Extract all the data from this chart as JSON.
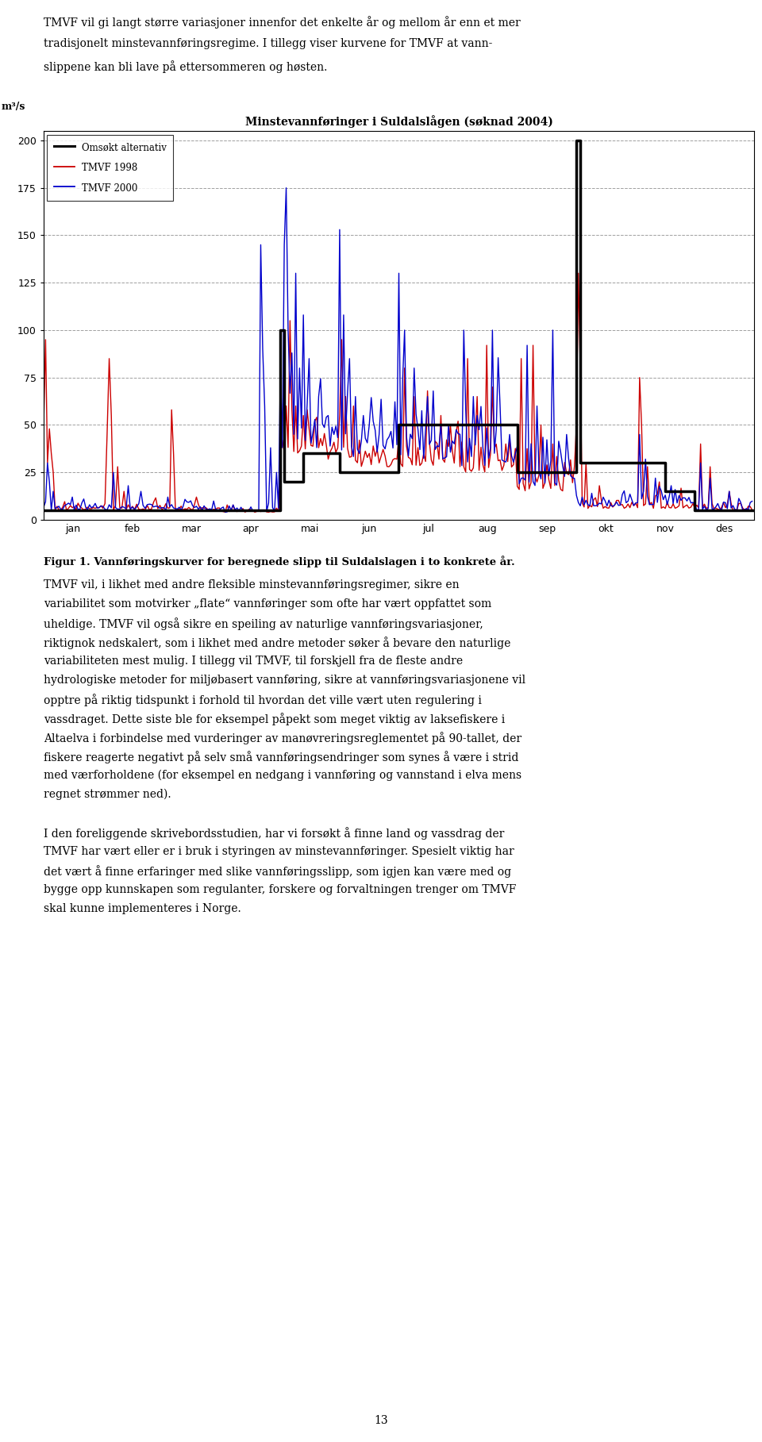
{
  "title": "Minstevannføringer i Suldalslågen (søknad 2004)",
  "ylabel": "m³/s",
  "months": [
    "jan",
    "feb",
    "mar",
    "apr",
    "mai",
    "jun",
    "jul",
    "aug",
    "sep",
    "okt",
    "nov",
    "des"
  ],
  "ylim": [
    0,
    205
  ],
  "yticks": [
    0,
    25,
    50,
    75,
    100,
    125,
    150,
    175,
    200
  ],
  "background_color": "#ffffff",
  "grid_color": "#888888",
  "omsokt_color": "#000000",
  "tmvf1998_color": "#cc0000",
  "tmvf2000_color": "#0000cc",
  "omsokt_lw": 2.5,
  "tmvf_lw": 1.0,
  "fig_width": 9.6,
  "fig_height": 18.17,
  "text_above_1": "TMVF vil gi langt større variasjoner innenfor det enkelte år og mellom år enn et mer",
  "text_above_2": "tradisjonelt minstevannføringsregime. I tillegg viser kurvene for TMVF at vann-",
  "text_above_3": "slippene kan bli lave på ettersommeren og høsten.",
  "figur_caption": "Figur 1. Vannføringskurver for beregnede slipp til Suldalslagen i to konkrete år.",
  "text_below": [
    "TMVF vil, i likhet med andre fleksible minstevannføringsregimer, sikre en",
    "variabilitet som motvirker „flate“ vannføringer som ofte har vært oppfattet som",
    "uheldige. TMVF vil også sikre en speiling av naturlige vannføringsvariasjoner,",
    "riktignok nedskalert, som i likhet med andre metoder søker å bevare den naturlige",
    "variabiliteten mest mulig. I tillegg vil TMVF, til forskjell fra de fleste andre",
    "hydrologiske metoder for miljøbasert vannføring, sikre at vannføringsvariasjonene vil",
    "opptre på riktig tidspunkt i forhold til hvordan det ville vært uten regulering i",
    "vassdraget. Dette siste ble for eksempel påpekt som meget viktig av laksefiskere i",
    "Altaelva i forbindelse med vurderinger av manøvreringsreglementet på 90-tallet, der",
    "fiskere reagerte negativt på selv små vannføringsendringer som synes å være i strid",
    "med værforholdene (for eksempel en nedgang i vannføring og vannstand i elva mens",
    "regnet strømmer ned).",
    "",
    "I den foreliggende skrivebordsstudien, har vi forsøkt å finne land og vassdrag der",
    "TMVF har vært eller er i bruk i styringen av minstevannføringer. Spesielt viktig har",
    "det vært å finne erfaringer med slike vannføringsslipp, som igjen kan være med og",
    "bygge opp kunnskapen som regulanter, forskere og forvaltningen trenger om TMVF",
    "skal kunne implementeres i Norge."
  ],
  "page_number": "13"
}
